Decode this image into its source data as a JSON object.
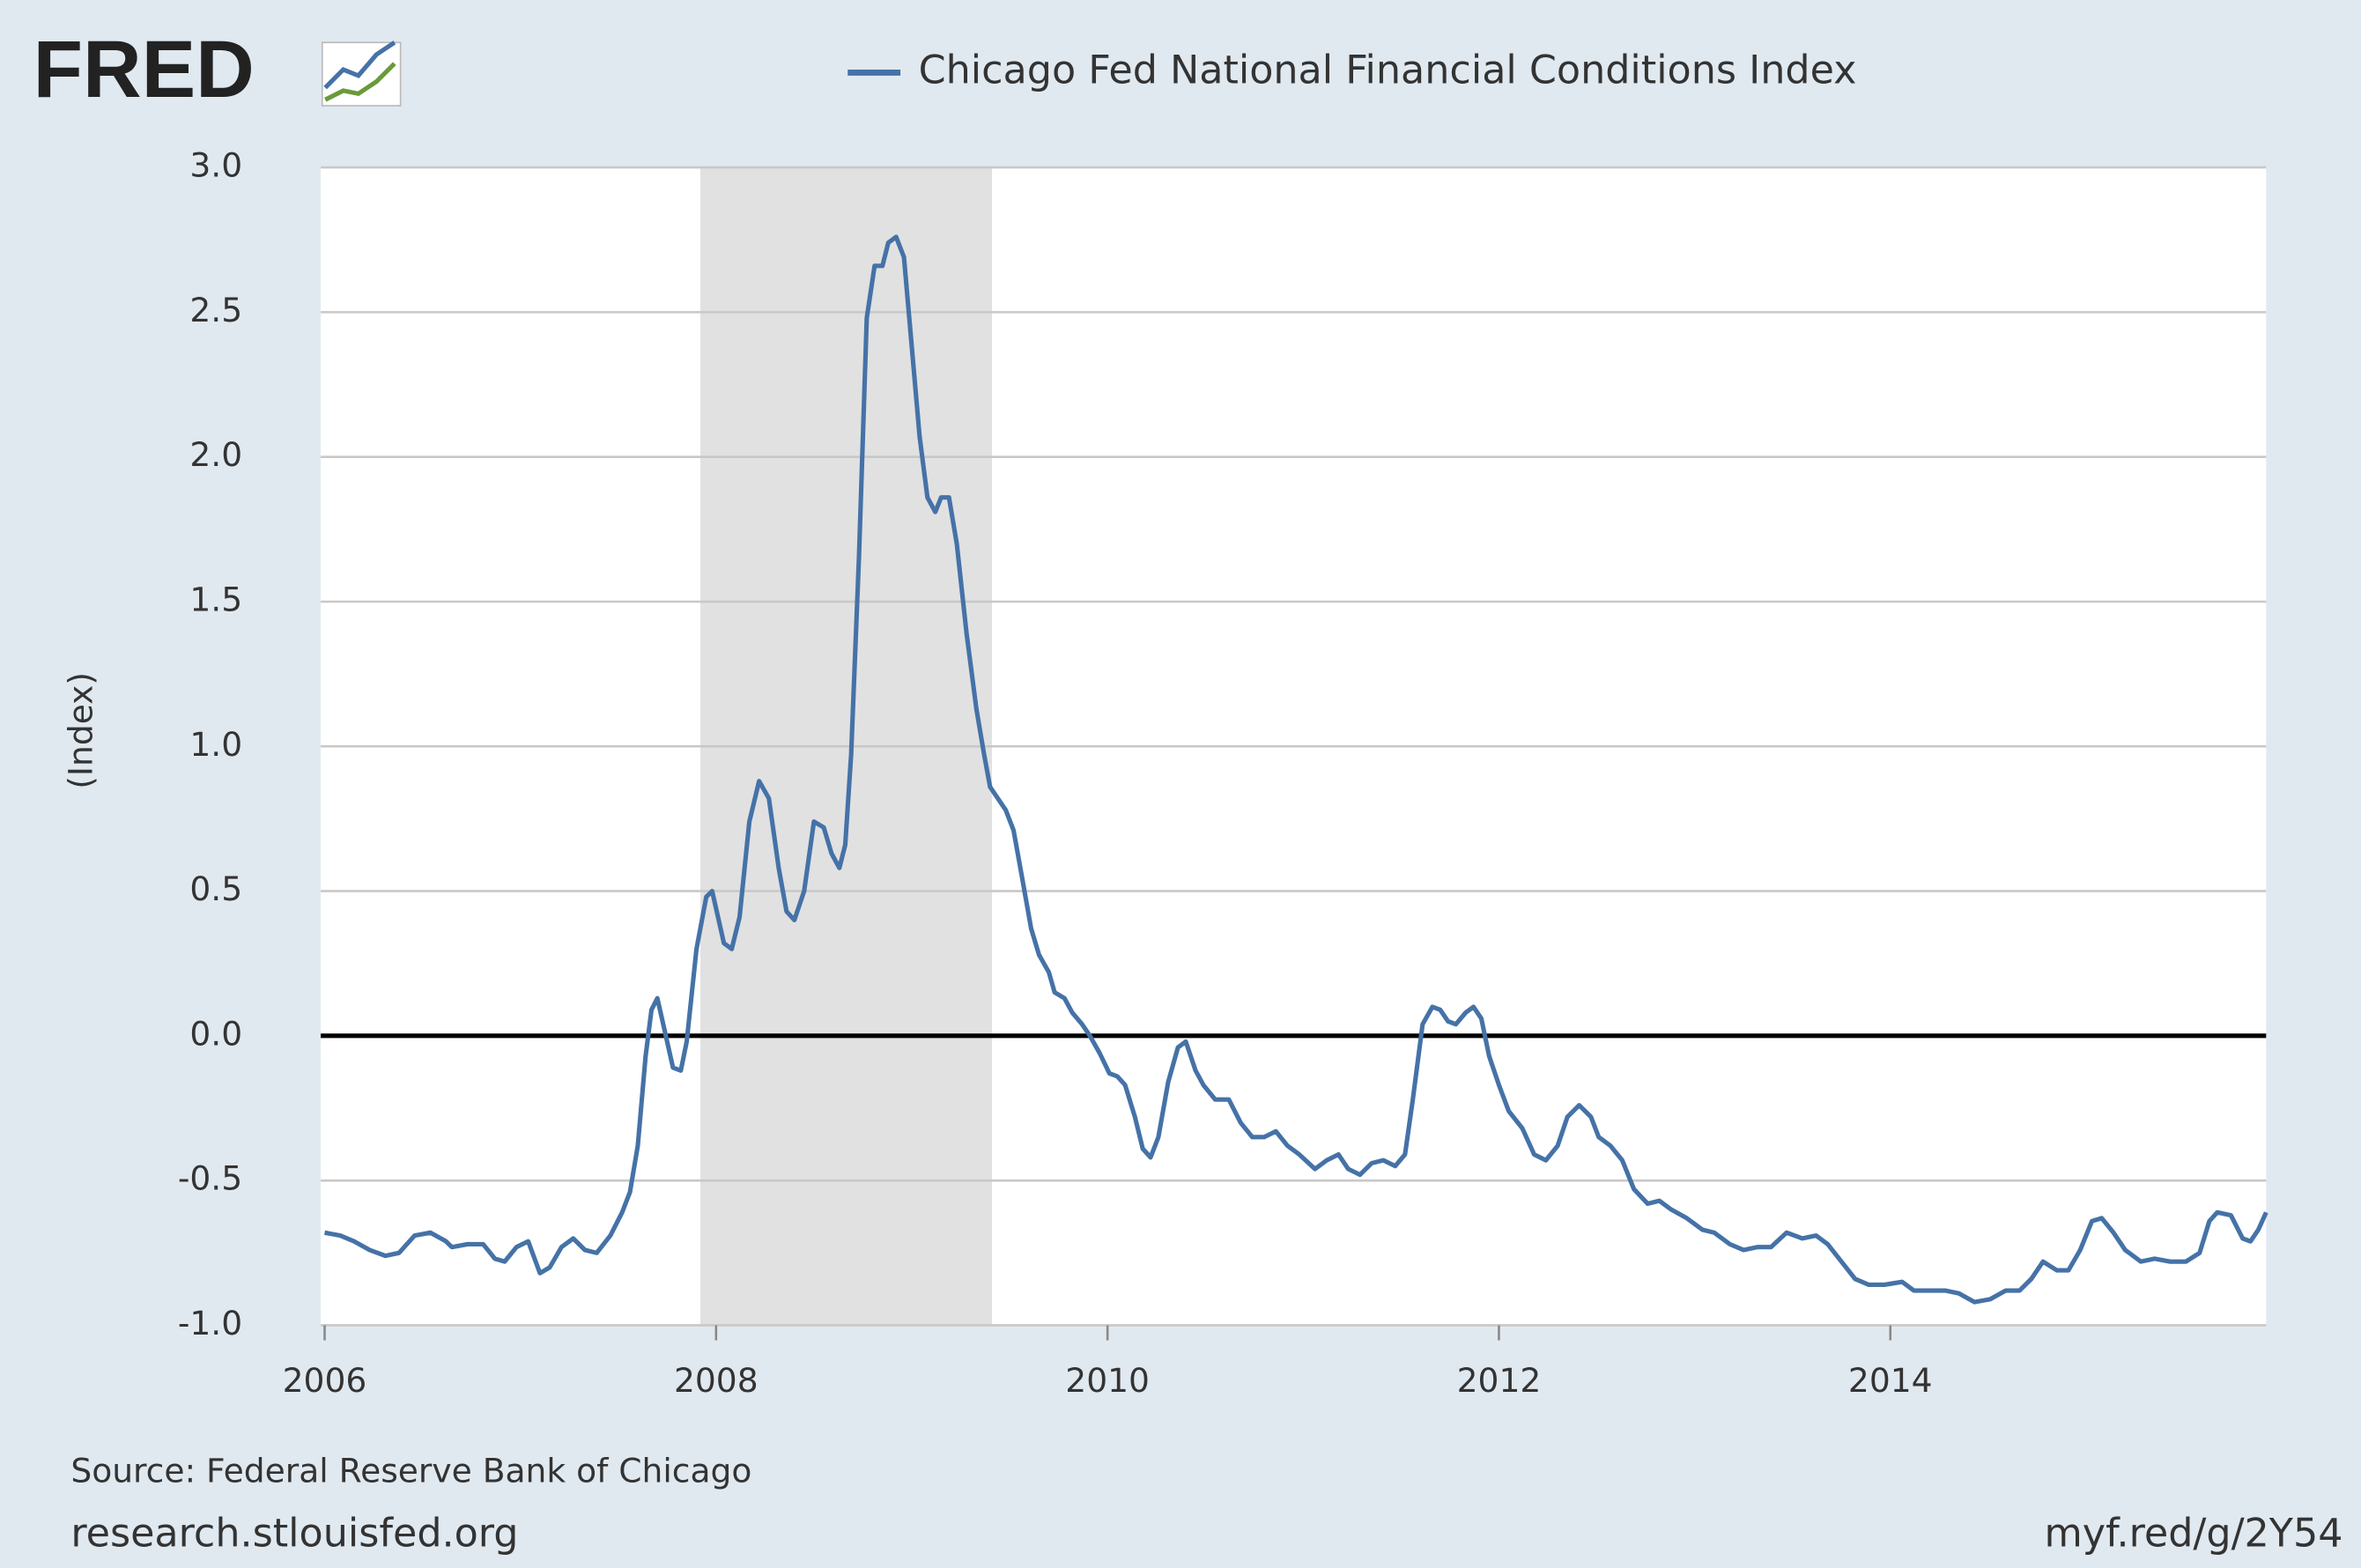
{
  "logo": "FRED",
  "chart_data": {
    "type": "line",
    "y_label": "(Index)",
    "source": "Source: Federal Reserve Bank of Chicago",
    "site": "research.stlouisfed.org",
    "link": "myf.red/g/2Y54",
    "xlim": [
      2005.98,
      2015.92
    ],
    "xticks": [
      2006,
      2008,
      2010,
      2012,
      2014
    ],
    "ylim": [
      -1,
      3
    ],
    "yticks": [
      {
        "value": -1,
        "label": "-1.0"
      },
      -0.5,
      {
        "value": 0,
        "label": "0.0"
      },
      0.5,
      {
        "value": 1,
        "label": "1.0"
      },
      1.5,
      {
        "value": 2,
        "label": "2.0"
      },
      2.5,
      {
        "value": 3,
        "label": "3.0"
      }
    ],
    "grid": true,
    "recession": [
      2007.92,
      2009.41
    ],
    "x": [
      2006.0,
      2006.08,
      2006.15,
      2006.23,
      2006.31,
      2006.38,
      2006.46,
      2006.54,
      2006.62,
      2006.65,
      2006.73,
      2006.81,
      2006.87,
      2006.92,
      2006.98,
      2007.04,
      2007.1,
      2007.15,
      2007.21,
      2007.27,
      2007.33,
      2007.39,
      2007.46,
      2007.52,
      2007.56,
      2007.6,
      2007.64,
      2007.67,
      2007.7,
      2007.73,
      2007.78,
      2007.82,
      2007.85,
      2007.9,
      2007.95,
      2007.98,
      2008.04,
      2008.08,
      2008.12,
      2008.17,
      2008.22,
      2008.27,
      2008.32,
      2008.36,
      2008.4,
      2008.45,
      2008.5,
      2008.55,
      2008.59,
      2008.63,
      2008.66,
      2008.69,
      2008.73,
      2008.77,
      2008.81,
      2008.85,
      2008.88,
      2008.92,
      2008.96,
      2009.0,
      2009.04,
      2009.08,
      2009.12,
      2009.15,
      2009.19,
      2009.23,
      2009.28,
      2009.33,
      2009.37,
      2009.4,
      2009.44,
      2009.48,
      2009.52,
      2009.56,
      2009.61,
      2009.65,
      2009.7,
      2009.73,
      2009.78,
      2009.82,
      2009.87,
      2009.91,
      2009.96,
      2010.01,
      2010.05,
      2010.09,
      2010.14,
      2010.18,
      2010.22,
      2010.26,
      2010.31,
      2010.36,
      2010.4,
      2010.45,
      2010.49,
      2010.55,
      2010.62,
      2010.68,
      2010.74,
      2010.8,
      2010.86,
      2010.92,
      2010.98,
      2011.06,
      2011.12,
      2011.18,
      2011.23,
      2011.29,
      2011.35,
      2011.41,
      2011.47,
      2011.52,
      2011.56,
      2011.61,
      2011.66,
      2011.7,
      2011.74,
      2011.78,
      2011.83,
      2011.87,
      2011.91,
      2011.95,
      2012.0,
      2012.05,
      2012.12,
      2012.18,
      2012.24,
      2012.3,
      2012.35,
      2012.41,
      2012.47,
      2012.51,
      2012.57,
      2012.63,
      2012.69,
      2012.76,
      2012.82,
      2012.88,
      2012.96,
      2013.04,
      2013.1,
      2013.18,
      2013.25,
      2013.32,
      2013.39,
      2013.47,
      2013.55,
      2013.62,
      2013.68,
      2013.75,
      2013.82,
      2013.89,
      2013.97,
      2014.06,
      2014.12,
      2014.2,
      2014.28,
      2014.35,
      2014.43,
      2014.51,
      2014.59,
      2014.66,
      2014.72,
      2014.78,
      2014.85,
      2014.91,
      2014.97,
      2015.03,
      2015.08,
      2015.14,
      2015.2,
      2015.28,
      2015.35,
      2015.43,
      2015.51,
      2015.58,
      2015.63,
      2015.67,
      2015.74,
      2015.8,
      2015.84,
      2015.88,
      2015.92
    ],
    "series": [
      {
        "name": "Chicago Fed National Financial Conditions Index",
        "color": "#4572a7",
        "values": [
          -0.68,
          -0.69,
          -0.71,
          -0.74,
          -0.76,
          -0.75,
          -0.69,
          -0.68,
          -0.71,
          -0.73,
          -0.72,
          -0.72,
          -0.77,
          -0.78,
          -0.73,
          -0.71,
          -0.82,
          -0.8,
          -0.73,
          -0.7,
          -0.74,
          -0.75,
          -0.69,
          -0.61,
          -0.54,
          -0.38,
          -0.07,
          0.09,
          0.13,
          0.04,
          -0.11,
          -0.12,
          -0.02,
          0.3,
          0.48,
          0.5,
          0.32,
          0.3,
          0.41,
          0.74,
          0.88,
          0.82,
          0.58,
          0.43,
          0.4,
          0.5,
          0.74,
          0.72,
          0.63,
          0.58,
          0.66,
          0.97,
          1.65,
          2.48,
          2.66,
          2.66,
          2.74,
          2.76,
          2.69,
          2.38,
          2.07,
          1.86,
          1.81,
          1.86,
          1.86,
          1.7,
          1.39,
          1.13,
          0.97,
          0.86,
          0.82,
          0.78,
          0.71,
          0.56,
          0.37,
          0.28,
          0.22,
          0.15,
          0.13,
          0.08,
          0.04,
          0.0,
          -0.06,
          -0.13,
          -0.14,
          -0.17,
          -0.28,
          -0.39,
          -0.42,
          -0.35,
          -0.16,
          -0.04,
          -0.02,
          -0.12,
          -0.17,
          -0.22,
          -0.22,
          -0.3,
          -0.35,
          -0.35,
          -0.33,
          -0.38,
          -0.41,
          -0.46,
          -0.43,
          -0.41,
          -0.46,
          -0.48,
          -0.44,
          -0.43,
          -0.45,
          -0.41,
          -0.22,
          0.04,
          0.1,
          0.09,
          0.05,
          0.04,
          0.08,
          0.1,
          0.06,
          -0.07,
          -0.17,
          -0.26,
          -0.32,
          -0.41,
          -0.43,
          -0.38,
          -0.28,
          -0.24,
          -0.28,
          -0.35,
          -0.38,
          -0.43,
          -0.53,
          -0.58,
          -0.57,
          -0.6,
          -0.63,
          -0.67,
          -0.68,
          -0.72,
          -0.74,
          -0.73,
          -0.73,
          -0.68,
          -0.7,
          -0.69,
          -0.72,
          -0.78,
          -0.84,
          -0.86,
          -0.86,
          -0.85,
          -0.88,
          -0.88,
          -0.88,
          -0.89,
          -0.92,
          -0.91,
          -0.88,
          -0.88,
          -0.84,
          -0.78,
          -0.81,
          -0.81,
          -0.74,
          -0.64,
          -0.63,
          -0.68,
          -0.74,
          -0.78,
          -0.77,
          -0.78,
          -0.78,
          -0.75,
          -0.64,
          -0.61,
          -0.62,
          -0.7,
          -0.71,
          -0.67,
          -0.61
        ]
      }
    ]
  }
}
